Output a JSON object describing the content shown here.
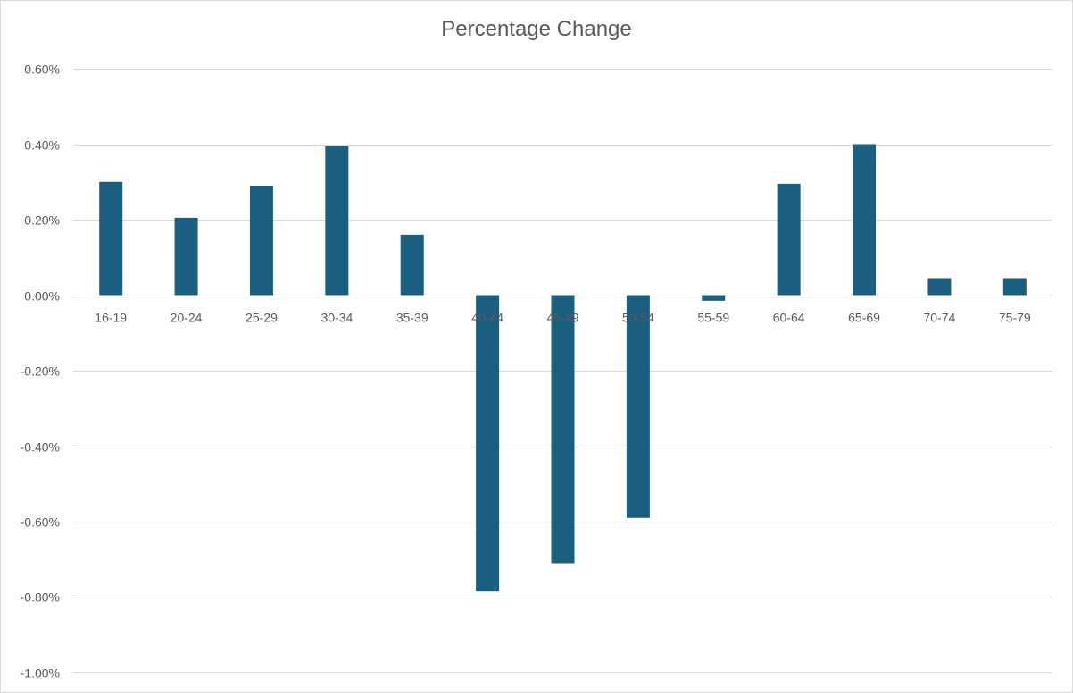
{
  "chart_data": {
    "type": "bar",
    "title": "Percentage Change",
    "categories": [
      "16-19",
      "20-24",
      "25-29",
      "30-34",
      "35-39",
      "40-44",
      "45-49",
      "50-54",
      "55-59",
      "60-64",
      "65-69",
      "70-74",
      "75-79"
    ],
    "series": [
      {
        "values": [
          0.3,
          0.205,
          0.29,
          0.395,
          0.16,
          -0.785,
          -0.71,
          -0.59,
          -0.015,
          0.295,
          0.4,
          0.045,
          0.045
        ]
      }
    ],
    "value_format": "percent_2dp",
    "ylim": [
      -1.0,
      0.6
    ],
    "yticks": [
      0.6,
      0.4,
      0.2,
      0.0,
      -0.2,
      -0.4,
      -0.6,
      -0.8,
      -1.0
    ],
    "ytick_labels": [
      "0.60%",
      "0.40%",
      "0.20%",
      "0.00%",
      "-0.20%",
      "-0.40%",
      "-0.60%",
      "-0.80%",
      "-1.00%"
    ],
    "xlabel": "",
    "ylabel": "",
    "grid": true,
    "legend": "none",
    "bar_color": "#1a5f80"
  }
}
